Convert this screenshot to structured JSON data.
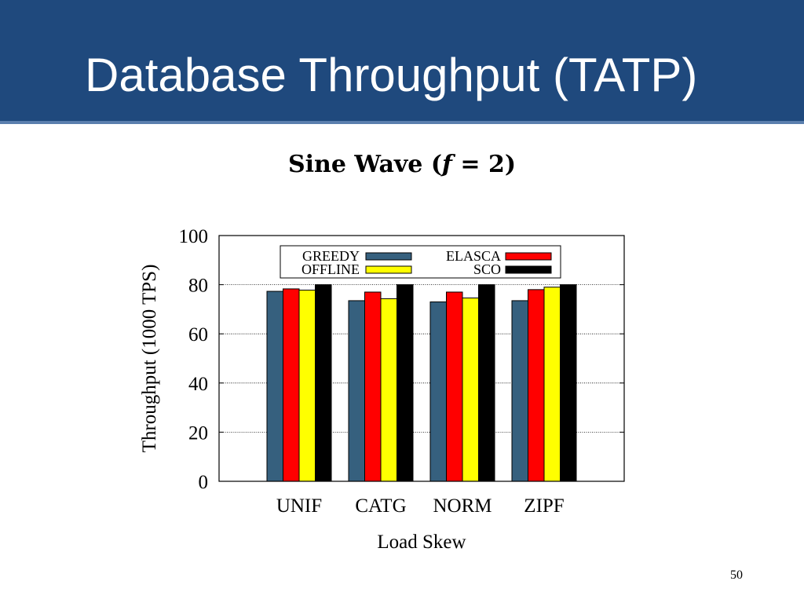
{
  "slide": {
    "title": "Database Throughput (TATP)",
    "subtitle": {
      "prefix": "Sine Wave (",
      "variable": "f",
      "suffix": " = 2)"
    },
    "page_number": "50"
  },
  "chart_data": {
    "type": "bar",
    "title": "",
    "xlabel": "Load Skew",
    "ylabel": "Throughput (1000 TPS)",
    "ylim": [
      0,
      100
    ],
    "yticks": [
      0,
      20,
      40,
      60,
      80,
      100
    ],
    "grid": true,
    "legend_position": "top",
    "categories": [
      "UNIF",
      "CATG",
      "NORM",
      "ZIPF"
    ],
    "series": [
      {
        "name": "GREEDY",
        "color": "#36607e",
        "values": [
          77.3,
          73.5,
          73.0,
          73.5
        ]
      },
      {
        "name": "ELASCA",
        "color": "#ff0000",
        "values": [
          78.3,
          77.0,
          77.0,
          78.0
        ]
      },
      {
        "name": "OFFLINE",
        "color": "#ffff00",
        "values": [
          77.8,
          74.3,
          74.6,
          79.0
        ]
      },
      {
        "name": "SCO",
        "color": "#000000",
        "values": [
          80.0,
          80.0,
          80.0,
          80.0
        ]
      }
    ]
  }
}
